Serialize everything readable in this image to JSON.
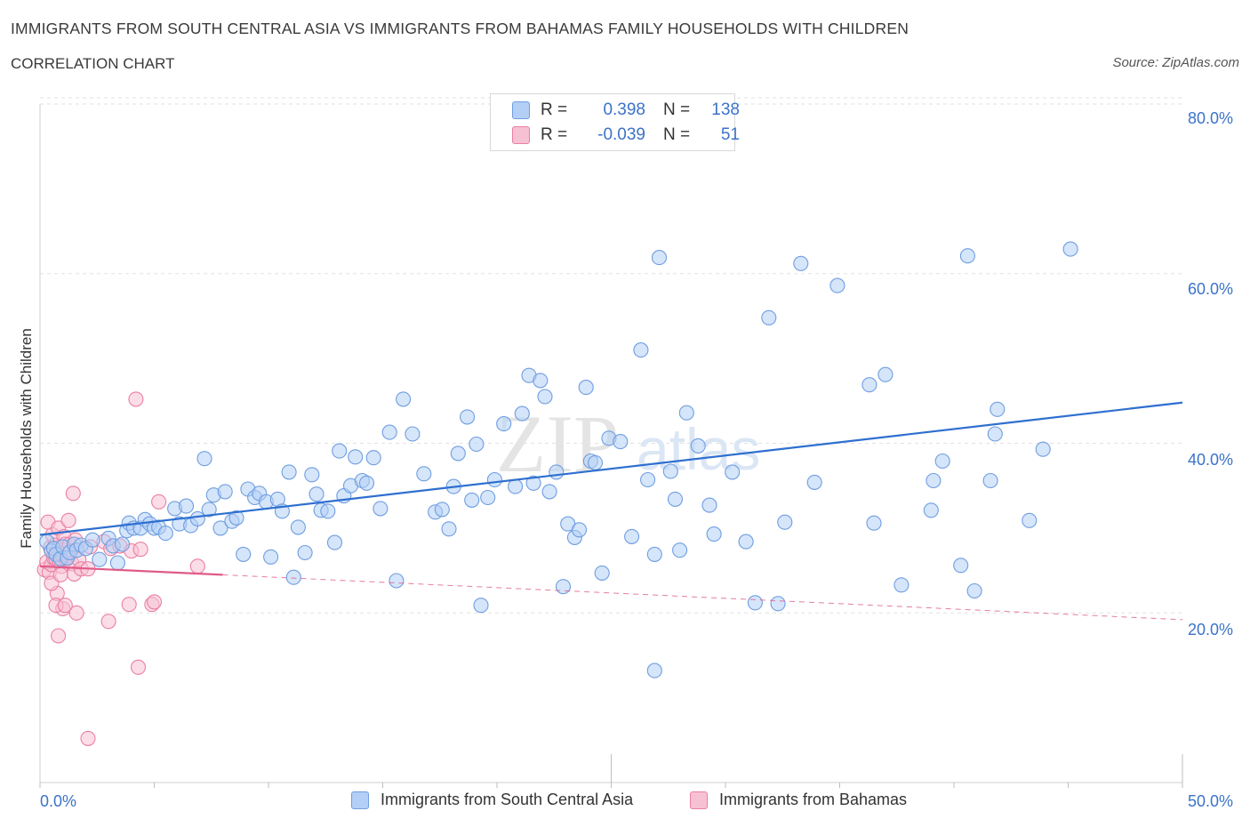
{
  "header": {
    "title": "IMMIGRANTS FROM SOUTH CENTRAL ASIA VS IMMIGRANTS FROM BAHAMAS FAMILY HOUSEHOLDS WITH CHILDREN",
    "subtitle": "CORRELATION CHART",
    "source": "Source: ZipAtlas.com"
  },
  "legend": {
    "series1": {
      "r_label": "R =",
      "r_value": "0.398",
      "n_label": "N =",
      "n_value": "138"
    },
    "series2": {
      "r_label": "R =",
      "r_value": "-0.039",
      "n_label": "N =",
      "n_value": "51"
    }
  },
  "watermark": {
    "zip": "ZIP",
    "atlas": "atlas"
  },
  "chart_data": {
    "type": "scatter",
    "title": "IMMIGRANTS FROM SOUTH CENTRAL ASIA VS IMMIGRANTS FROM BAHAMAS FAMILY HOUSEHOLDS WITH CHILDREN",
    "ylabel": "Family Households with Children",
    "xlim": [
      0,
      50
    ],
    "ylim": [
      0,
      80
    ],
    "x_tick_labels": [
      "0.0%",
      "50.0%"
    ],
    "y_tick_labels": [
      "20.0%",
      "40.0%",
      "60.0%",
      "80.0%"
    ],
    "y_ticks": [
      20,
      40,
      60,
      80
    ],
    "grid": true,
    "legend_position": "top-center",
    "colors": {
      "series1": "#6f9ee0",
      "series1_fill": "#b3cff5",
      "series2": "#ea7fa3",
      "series2_fill": "#f7c1d4",
      "line1": "#2e6fd0",
      "line2": "#e05a8a"
    },
    "series": [
      {
        "name": "Immigrants from South Central Asia",
        "trend": {
          "x": [
            0,
            50
          ],
          "y": [
            29.2,
            44.8
          ],
          "solid_to": 50
        },
        "points": [
          [
            0.3,
            28.4
          ],
          [
            0.5,
            27.3
          ],
          [
            0.6,
            27.6
          ],
          [
            0.7,
            26.9
          ],
          [
            0.9,
            26.4
          ],
          [
            1.0,
            27.8
          ],
          [
            1.2,
            26.5
          ],
          [
            1.3,
            27.1
          ],
          [
            1.5,
            28.1
          ],
          [
            1.6,
            27.4
          ],
          [
            1.8,
            28.0
          ],
          [
            2.0,
            27.6
          ],
          [
            2.3,
            28.6
          ],
          [
            2.6,
            26.3
          ],
          [
            3.0,
            28.8
          ],
          [
            3.2,
            27.9
          ],
          [
            3.4,
            25.9
          ],
          [
            3.6,
            28.1
          ],
          [
            3.8,
            29.7
          ],
          [
            3.9,
            30.6
          ],
          [
            4.1,
            30.0
          ],
          [
            4.4,
            30.0
          ],
          [
            4.6,
            31.0
          ],
          [
            4.8,
            30.5
          ],
          [
            5.0,
            30.0
          ],
          [
            5.2,
            30.1
          ],
          [
            5.5,
            29.4
          ],
          [
            5.9,
            32.3
          ],
          [
            6.1,
            30.5
          ],
          [
            6.4,
            32.6
          ],
          [
            6.6,
            30.3
          ],
          [
            6.9,
            31.1
          ],
          [
            7.2,
            38.2
          ],
          [
            7.4,
            32.2
          ],
          [
            7.6,
            33.9
          ],
          [
            7.9,
            30.0
          ],
          [
            8.1,
            34.3
          ],
          [
            8.4,
            30.8
          ],
          [
            8.6,
            31.2
          ],
          [
            8.9,
            26.9
          ],
          [
            9.1,
            34.6
          ],
          [
            9.4,
            33.6
          ],
          [
            9.6,
            34.1
          ],
          [
            9.9,
            33.1
          ],
          [
            10.1,
            26.6
          ],
          [
            10.4,
            33.4
          ],
          [
            10.6,
            32.0
          ],
          [
            10.9,
            36.6
          ],
          [
            11.1,
            24.2
          ],
          [
            11.3,
            30.1
          ],
          [
            11.6,
            27.1
          ],
          [
            11.9,
            36.3
          ],
          [
            12.1,
            34.0
          ],
          [
            12.3,
            32.1
          ],
          [
            12.6,
            32.0
          ],
          [
            12.9,
            28.3
          ],
          [
            13.1,
            39.1
          ],
          [
            13.3,
            33.8
          ],
          [
            13.6,
            35.0
          ],
          [
            13.8,
            38.4
          ],
          [
            14.1,
            35.6
          ],
          [
            14.3,
            35.3
          ],
          [
            14.6,
            38.3
          ],
          [
            14.9,
            32.3
          ],
          [
            15.3,
            41.3
          ],
          [
            15.6,
            23.8
          ],
          [
            15.9,
            45.2
          ],
          [
            16.3,
            41.1
          ],
          [
            16.8,
            36.4
          ],
          [
            17.3,
            31.9
          ],
          [
            17.6,
            32.2
          ],
          [
            17.9,
            29.9
          ],
          [
            18.1,
            34.9
          ],
          [
            18.3,
            38.8
          ],
          [
            18.7,
            43.1
          ],
          [
            18.9,
            33.3
          ],
          [
            19.1,
            39.9
          ],
          [
            19.3,
            20.9
          ],
          [
            19.6,
            33.6
          ],
          [
            19.9,
            35.7
          ],
          [
            20.3,
            42.3
          ],
          [
            20.8,
            34.9
          ],
          [
            21.1,
            43.5
          ],
          [
            21.4,
            48.0
          ],
          [
            21.6,
            35.3
          ],
          [
            21.9,
            47.4
          ],
          [
            22.1,
            45.5
          ],
          [
            22.3,
            34.3
          ],
          [
            22.6,
            36.6
          ],
          [
            22.9,
            23.1
          ],
          [
            23.1,
            30.5
          ],
          [
            23.4,
            28.9
          ],
          [
            23.6,
            29.8
          ],
          [
            23.9,
            46.6
          ],
          [
            24.1,
            37.9
          ],
          [
            24.3,
            37.7
          ],
          [
            24.6,
            24.7
          ],
          [
            24.9,
            40.6
          ],
          [
            25.4,
            40.2
          ],
          [
            25.9,
            29.0
          ],
          [
            26.3,
            51.0
          ],
          [
            26.6,
            35.7
          ],
          [
            26.9,
            26.9
          ],
          [
            27.1,
            61.9
          ],
          [
            27.6,
            36.7
          ],
          [
            27.8,
            33.4
          ],
          [
            28.0,
            27.4
          ],
          [
            28.3,
            43.6
          ],
          [
            28.8,
            39.7
          ],
          [
            29.3,
            32.7
          ],
          [
            29.5,
            29.3
          ],
          [
            30.3,
            36.6
          ],
          [
            30.9,
            28.4
          ],
          [
            31.3,
            21.2
          ],
          [
            31.9,
            54.8
          ],
          [
            32.3,
            21.1
          ],
          [
            32.6,
            30.7
          ],
          [
            33.3,
            61.2
          ],
          [
            33.9,
            35.4
          ],
          [
            34.9,
            58.6
          ],
          [
            36.3,
            46.9
          ],
          [
            36.5,
            30.6
          ],
          [
            37.0,
            48.1
          ],
          [
            37.7,
            23.3
          ],
          [
            39.0,
            32.1
          ],
          [
            39.1,
            35.6
          ],
          [
            39.5,
            37.9
          ],
          [
            40.3,
            25.6
          ],
          [
            40.6,
            62.1
          ],
          [
            40.9,
            22.6
          ],
          [
            41.6,
            35.6
          ],
          [
            41.8,
            41.1
          ],
          [
            41.9,
            44.0
          ],
          [
            43.3,
            30.9
          ],
          [
            43.9,
            39.3
          ],
          [
            45.1,
            62.9
          ],
          [
            26.9,
            13.2
          ]
        ]
      },
      {
        "name": "Immigrants from Bahamas",
        "trend": {
          "x": [
            0,
            50
          ],
          "y": [
            25.5,
            19.2
          ],
          "solid_to": 8
        },
        "points": [
          [
            0.2,
            25.1
          ],
          [
            0.3,
            26.0
          ],
          [
            0.35,
            30.7
          ],
          [
            0.4,
            24.8
          ],
          [
            0.45,
            27.7
          ],
          [
            0.5,
            25.7
          ],
          [
            0.55,
            29.2
          ],
          [
            0.6,
            26.5
          ],
          [
            0.65,
            28.0
          ],
          [
            0.7,
            26.4
          ],
          [
            0.75,
            22.3
          ],
          [
            0.8,
            30.0
          ],
          [
            0.85,
            26.1
          ],
          [
            0.9,
            27.0
          ],
          [
            0.95,
            25.5
          ],
          [
            1.0,
            20.5
          ],
          [
            1.05,
            29.0
          ],
          [
            1.1,
            28.1
          ],
          [
            1.15,
            26.3
          ],
          [
            1.2,
            26.8
          ],
          [
            1.25,
            30.9
          ],
          [
            1.3,
            28.1
          ],
          [
            1.35,
            27.3
          ],
          [
            1.4,
            25.8
          ],
          [
            1.45,
            34.1
          ],
          [
            1.5,
            24.6
          ],
          [
            1.55,
            28.6
          ],
          [
            1.6,
            20.0
          ],
          [
            1.7,
            26.3
          ],
          [
            1.8,
            25.2
          ],
          [
            0.5,
            23.5
          ],
          [
            0.9,
            24.5
          ],
          [
            0.7,
            20.9
          ],
          [
            0.8,
            17.3
          ],
          [
            1.1,
            20.9
          ],
          [
            2.1,
            25.2
          ],
          [
            2.2,
            27.8
          ],
          [
            2.8,
            28.4
          ],
          [
            3.0,
            19.0
          ],
          [
            3.1,
            27.6
          ],
          [
            3.5,
            27.9
          ],
          [
            3.9,
            21.0
          ],
          [
            4.0,
            27.3
          ],
          [
            4.2,
            45.2
          ],
          [
            4.3,
            13.6
          ],
          [
            4.4,
            27.5
          ],
          [
            4.9,
            21.0
          ],
          [
            5.0,
            21.3
          ],
          [
            5.2,
            33.1
          ],
          [
            6.9,
            25.5
          ],
          [
            2.1,
            5.2
          ]
        ]
      }
    ]
  },
  "bottom_legend": {
    "series1_label": "Immigrants from South Central Asia",
    "series2_label": "Immigrants from Bahamas"
  },
  "axes": {
    "x_min_label": "0.0%",
    "x_max_label": "50.0%",
    "y_labels": [
      "80.0%",
      "60.0%",
      "40.0%",
      "20.0%"
    ],
    "y_title": "Family Households with Children"
  }
}
